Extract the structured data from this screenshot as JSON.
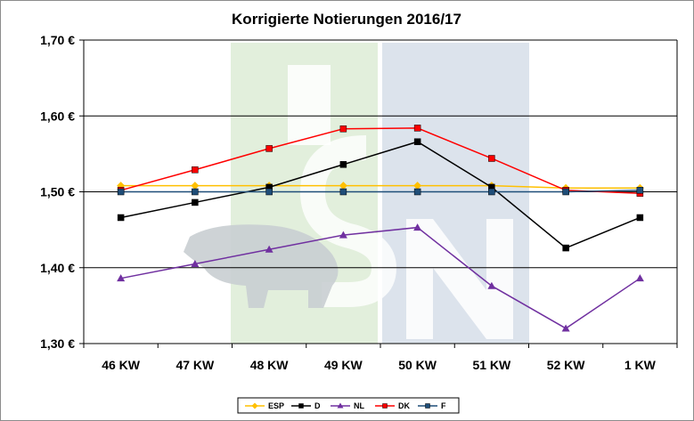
{
  "chart_data": {
    "type": "line",
    "title": "Korrigierte Notierungen 2016/17",
    "xlabel": "",
    "ylabel": "",
    "categories": [
      "46 KW",
      "47 KW",
      "48 KW",
      "49 KW",
      "50 KW",
      "51 KW",
      "52 KW",
      "1 KW"
    ],
    "ylim": [
      1.3,
      1.7
    ],
    "yticks": [
      1.3,
      1.4,
      1.5,
      1.6,
      1.7
    ],
    "ytick_labels": [
      "1,30 €",
      "1,40 €",
      "1,50 €",
      "1,60 €",
      "1,70 €"
    ],
    "grid": "horizontal",
    "legend_position": "bottom",
    "series": [
      {
        "name": "ESP",
        "color": "#ffc000",
        "marker": "diamond",
        "values": [
          1.508,
          1.508,
          1.508,
          1.508,
          1.508,
          1.508,
          1.505,
          1.505
        ]
      },
      {
        "name": "D",
        "color": "#000000",
        "marker": "square",
        "values": [
          1.466,
          1.486,
          1.506,
          1.536,
          1.566,
          1.506,
          1.426,
          1.466
        ]
      },
      {
        "name": "NL",
        "color": "#7030a0",
        "marker": "triangle",
        "values": [
          1.386,
          1.405,
          1.424,
          1.443,
          1.453,
          1.376,
          1.32,
          1.386
        ]
      },
      {
        "name": "DK",
        "color": "#ff0000",
        "marker": "square",
        "values": [
          1.502,
          1.529,
          1.557,
          1.583,
          1.584,
          1.544,
          1.502,
          1.498
        ]
      },
      {
        "name": "F",
        "color": "#1f4e79",
        "marker": "square",
        "values": [
          1.5,
          1.5,
          1.5,
          1.5,
          1.5,
          1.5,
          1.5,
          1.502
        ]
      }
    ]
  }
}
